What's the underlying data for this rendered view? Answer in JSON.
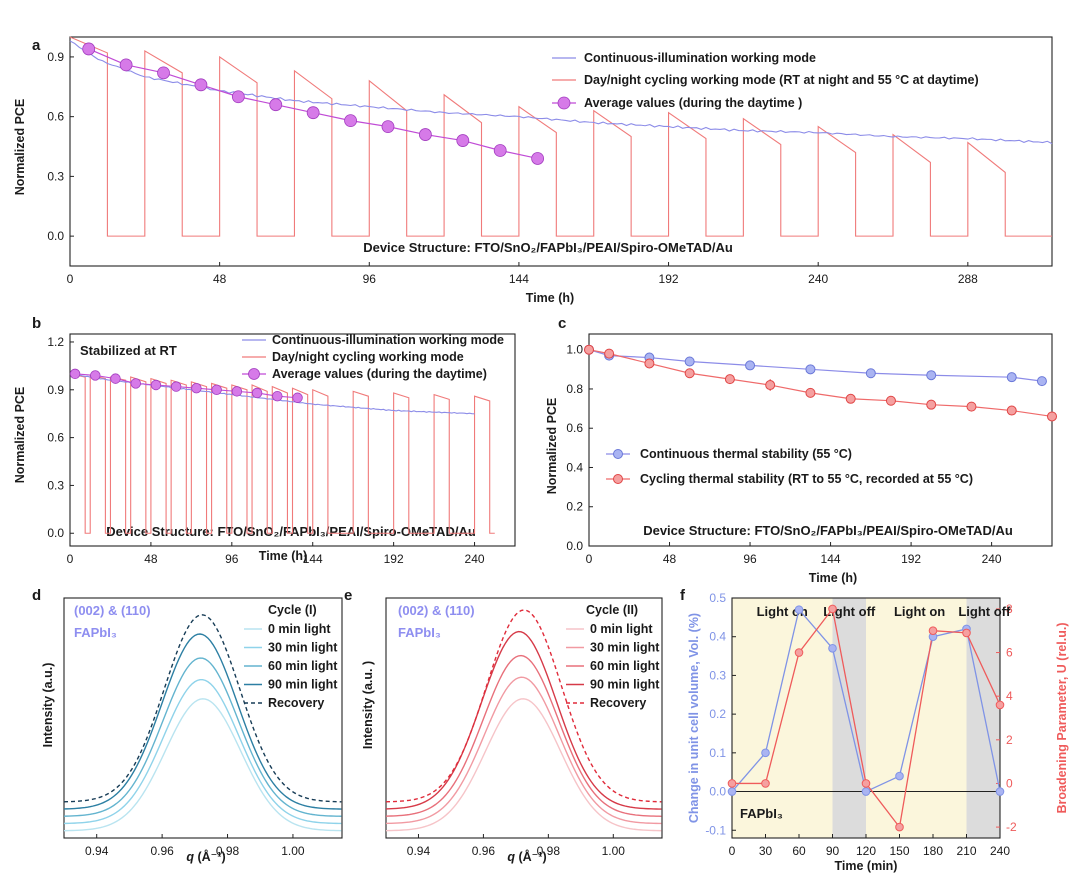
{
  "charts": {
    "a": {
      "panel_label": "a",
      "xlabel": "Time (h)",
      "ylabel": "Normalized PCE",
      "xlim": [
        0,
        315
      ],
      "ylim": [
        -0.15,
        1.0
      ],
      "xticks": [
        0,
        48,
        96,
        144,
        192,
        240,
        288
      ],
      "yticks": [
        0.0,
        0.3,
        0.6,
        0.9
      ],
      "xtick_labels": [
        "0",
        "48",
        "96",
        "144",
        "192",
        "240",
        "288"
      ],
      "ytick_labels": [
        "0.0",
        "0.3",
        "0.6",
        "0.9"
      ],
      "legend": [
        "Continuous-illumination working mode",
        "Day/night cycling working mode (RT at night and 55 °C at daytime)",
        "Average values (during the daytime )"
      ],
      "annotation": "Device Structure: FTO/SnO₂/FAPbI₃/PEAI/Spiro-OMeTAD/Au",
      "continuous_x": [
        0,
        10,
        24,
        48,
        72,
        96,
        120,
        144,
        168,
        192,
        216,
        240,
        264,
        288,
        315
      ],
      "continuous_y": [
        0.98,
        0.88,
        0.8,
        0.73,
        0.68,
        0.65,
        0.62,
        0.6,
        0.57,
        0.55,
        0.53,
        0.52,
        0.5,
        0.49,
        0.47
      ],
      "cycling_day_start": [
        0,
        24,
        48,
        72,
        96,
        120,
        144,
        168,
        192,
        216,
        240,
        264,
        288
      ],
      "cycling_day_start_value": [
        1.0,
        0.93,
        0.9,
        0.83,
        0.78,
        0.71,
        0.65,
        0.63,
        0.62,
        0.59,
        0.55,
        0.51,
        0.47
      ],
      "cycling_day_end_value": [
        0.92,
        0.82,
        0.77,
        0.69,
        0.63,
        0.57,
        0.52,
        0.5,
        0.49,
        0.46,
        0.42,
        0.37,
        0.32
      ],
      "day_length_h": 12,
      "average_x": [
        6,
        18,
        30,
        42,
        54,
        66,
        78,
        90,
        102,
        114,
        126,
        138,
        150
      ],
      "average_y": [
        0.94,
        0.86,
        0.82,
        0.76,
        0.7,
        0.66,
        0.62,
        0.58,
        0.55,
        0.51,
        0.48,
        0.43,
        0.39
      ]
    },
    "b": {
      "panel_label": "b",
      "xlabel": "Time (h)",
      "ylabel": "Normalized PCE",
      "xlim": [
        0,
        264
      ],
      "ylim": [
        -0.08,
        1.25
      ],
      "xticks": [
        0,
        48,
        96,
        144,
        192,
        240
      ],
      "yticks": [
        0.0,
        0.3,
        0.6,
        0.9,
        1.2
      ],
      "xtick_labels": [
        "0",
        "48",
        "96",
        "144",
        "192",
        "240"
      ],
      "ytick_labels": [
        "0.0",
        "0.3",
        "0.6",
        "0.9",
        "1.2"
      ],
      "legend": [
        "Continuous-illumination working mode",
        "Day/night cycling working mode",
        "Average values (during the daytime)"
      ],
      "note": "Stabilized at RT",
      "annotation": "Device Structure: FTO/SnO₂/FAPbI₃/PEAI/Spiro-OMeTAD/Au",
      "continuous_x": [
        0,
        24,
        48,
        72,
        96,
        120,
        144,
        168,
        192,
        216,
        240
      ],
      "continuous_y": [
        1.0,
        0.96,
        0.93,
        0.9,
        0.87,
        0.84,
        0.81,
        0.79,
        0.77,
        0.76,
        0.75
      ],
      "cycling_day_start": [
        0,
        12,
        24,
        36,
        48,
        60,
        72,
        84,
        96,
        108,
        120,
        132,
        144,
        168,
        192,
        216,
        240
      ],
      "cycling_day_start_value": [
        1.0,
        0.99,
        0.98,
        0.98,
        0.97,
        0.96,
        0.95,
        0.94,
        0.93,
        0.93,
        0.92,
        0.91,
        0.9,
        0.89,
        0.88,
        0.87,
        0.86
      ],
      "cycling_day_end_value": [
        0.98,
        0.97,
        0.96,
        0.95,
        0.94,
        0.93,
        0.92,
        0.91,
        0.9,
        0.89,
        0.88,
        0.87,
        0.86,
        0.86,
        0.85,
        0.84,
        0.83
      ],
      "day_length_h": 9,
      "average_x": [
        3,
        15,
        27,
        39,
        51,
        63,
        75,
        87,
        99,
        111,
        123,
        135
      ],
      "average_y": [
        1.0,
        0.99,
        0.97,
        0.94,
        0.93,
        0.92,
        0.91,
        0.9,
        0.89,
        0.88,
        0.86,
        0.85
      ]
    },
    "c": {
      "panel_label": "c",
      "xlabel": "Time (h)",
      "ylabel": "Normalized PCE",
      "xlim": [
        0,
        276
      ],
      "ylim": [
        0.0,
        1.08
      ],
      "xticks": [
        0,
        48,
        96,
        144,
        192,
        240
      ],
      "yticks": [
        0.0,
        0.2,
        0.4,
        0.6,
        0.8,
        1.0
      ],
      "xtick_labels": [
        "0",
        "48",
        "96",
        "144",
        "192",
        "240"
      ],
      "ytick_labels": [
        "0.0",
        "0.2",
        "0.4",
        "0.6",
        "0.8",
        "1.0"
      ],
      "legend": [
        "Continuous thermal stability (55 °C)",
        "Cycling thermal stability (RT to 55 °C, recorded at 55 °C)"
      ],
      "annotation": "Device Structure: FTO/SnO₂/FAPbI₃/PEAI/Spiro-OMeTAD/Au",
      "continuous_x": [
        0,
        12,
        36,
        60,
        96,
        132,
        168,
        204,
        252,
        270
      ],
      "continuous_y": [
        1.0,
        0.97,
        0.96,
        0.94,
        0.92,
        0.9,
        0.88,
        0.87,
        0.86,
        0.84
      ],
      "continuous_err": [
        0.02,
        0.02,
        0.02,
        0.02,
        0.02,
        0.02,
        0.02,
        0.01,
        0.02,
        0.02
      ],
      "cycling_x": [
        0,
        12,
        36,
        60,
        84,
        108,
        132,
        156,
        180,
        204,
        228,
        252,
        276
      ],
      "cycling_y": [
        1.0,
        0.98,
        0.93,
        0.88,
        0.85,
        0.82,
        0.78,
        0.75,
        0.74,
        0.72,
        0.71,
        0.69,
        0.66
      ],
      "cycling_err": [
        0.02,
        0.02,
        0.02,
        0.02,
        0.02,
        0.03,
        0.02,
        0.02,
        0.02,
        0.01,
        0.02,
        0.01,
        0.02
      ]
    },
    "d": {
      "panel_label": "d",
      "xlabel_sym": "q",
      "xlabel_unit": " (Å⁻¹)",
      "ylabel": "Intensity (a.u.)",
      "xlim": [
        0.93,
        1.015
      ],
      "xticks": [
        0.94,
        0.96,
        0.98,
        1.0
      ],
      "xtick_labels": [
        "0.94",
        "0.96",
        "0.98",
        "1.00"
      ],
      "label_peak": "(002) & (110)",
      "label_material": "FAPbI₃",
      "legend_title": "Cycle (I)",
      "legend": [
        "0 min light",
        "30 min light",
        "60 min light",
        "90 min light",
        "Recovery"
      ],
      "colors": [
        "#b9e4f0",
        "#8fd3ea",
        "#63b4cf",
        "#2c7fa3",
        "#173c56"
      ],
      "peak_center": [
        0.9725,
        0.972,
        0.9718,
        0.9715,
        0.9722
      ],
      "peak_height": [
        0.55,
        0.6,
        0.66,
        0.73,
        0.78
      ],
      "baseline": [
        0.03,
        0.06,
        0.09,
        0.12,
        0.15
      ]
    },
    "e": {
      "panel_label": "e",
      "xlabel_sym": "q",
      "xlabel_unit": " (Å⁻¹)",
      "ylabel": "Intensity (a.u. )",
      "xlim": [
        0.93,
        1.015
      ],
      "xticks": [
        0.94,
        0.96,
        0.98,
        1.0
      ],
      "xtick_labels": [
        "0.94",
        "0.96",
        "0.98",
        "1.00"
      ],
      "label_peak": "(002) & (110)",
      "label_material": "FAPbI₃",
      "legend_title": "Cycle (II)",
      "legend": [
        "0 min light",
        "30 min light",
        "60 min light",
        "90 min light",
        "Recovery"
      ],
      "colors": [
        "#f6c4c8",
        "#f19aa2",
        "#e8707b",
        "#d63a48",
        "#e02b3a"
      ],
      "peak_center": [
        0.9722,
        0.9718,
        0.9715,
        0.971,
        0.9725
      ],
      "peak_height": [
        0.55,
        0.61,
        0.67,
        0.74,
        0.8
      ],
      "baseline": [
        0.03,
        0.06,
        0.09,
        0.12,
        0.15
      ]
    },
    "f": {
      "panel_label": "f",
      "xlabel": "Time (min)",
      "ylabel_left": "Change in unit cell volume, Vol. (%)",
      "ylabel_right": "Broadening Parameter, U (rel.u.)",
      "xlim": [
        0,
        240
      ],
      "ylim_left": [
        -0.12,
        0.5
      ],
      "ylim_right": [
        -2.5,
        8.5
      ],
      "xticks": [
        0,
        30,
        60,
        90,
        120,
        150,
        180,
        210,
        240
      ],
      "xtick_labels": [
        "0",
        "30",
        "60",
        "90",
        "120",
        "150",
        "180",
        "210",
        "240"
      ],
      "yticks_left": [
        -0.1,
        0.0,
        0.1,
        0.2,
        0.3,
        0.4,
        0.5
      ],
      "ytick_labels_left": [
        "-0.1",
        "0.0",
        "0.1",
        "0.2",
        "0.3",
        "0.4",
        "0.5"
      ],
      "yticks_right": [
        -2,
        0,
        2,
        4,
        6,
        8
      ],
      "ytick_labels_right": [
        "-2",
        "0",
        "2",
        "4",
        "6",
        "8"
      ],
      "regions": [
        {
          "from": 0,
          "to": 90,
          "color": "#fbf6dc"
        },
        {
          "from": 90,
          "to": 120,
          "color": "#dcdcdc"
        },
        {
          "from": 120,
          "to": 210,
          "color": "#fbf6dc"
        },
        {
          "from": 210,
          "to": 240,
          "color": "#dcdcdc"
        }
      ],
      "region_labels": [
        "Light on",
        "Light off",
        "Light on",
        "Light off"
      ],
      "region_label_x": [
        45,
        105,
        168,
        226
      ],
      "material": "FAPbI₃",
      "x": [
        0,
        30,
        60,
        90,
        120,
        150,
        180,
        210,
        240
      ],
      "volume": [
        0.0,
        0.1,
        0.47,
        0.37,
        0.0,
        0.04,
        0.4,
        0.42,
        0.0
      ],
      "broadening": [
        0.0,
        0.0,
        6.0,
        8.0,
        0.0,
        -2.0,
        7.0,
        6.9,
        3.6
      ],
      "colors": {
        "volume": "#7f93e6",
        "broadening": "#ef5b5b"
      }
    }
  }
}
